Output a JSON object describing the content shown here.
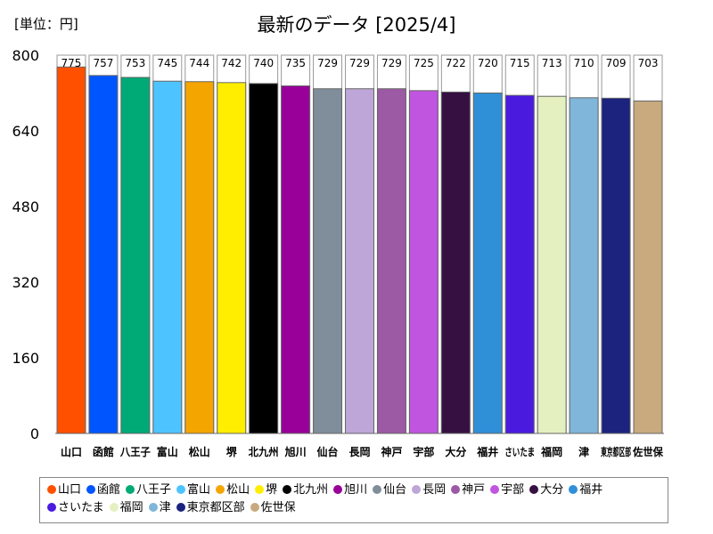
{
  "unit_label": "[単位：円]",
  "title": "最新のデータ [2025/4]",
  "chart_data": {
    "type": "bar",
    "title": "最新のデータ [2025/4]",
    "ylabel": "[単位：円]",
    "ylim": [
      0,
      800
    ],
    "yticks": [
      "800",
      "640",
      "480",
      "320",
      "160",
      "0"
    ],
    "ytick_values": [
      800,
      640,
      480,
      320,
      160,
      0
    ],
    "grid": false,
    "legend_position": "bottom",
    "categories": [
      "山口",
      "函館",
      "八王子",
      "富山",
      "松山",
      "堺",
      "北九州",
      "旭川",
      "仙台",
      "長岡",
      "神戸",
      "宇部",
      "大分",
      "福井",
      "さいたま",
      "福岡",
      "津",
      "東京都区部",
      "佐世保"
    ],
    "values": [
      775,
      757,
      753,
      745,
      744,
      742,
      740,
      735,
      729,
      729,
      729,
      725,
      722,
      720,
      715,
      713,
      710,
      709,
      703
    ],
    "value_labels": [
      "775",
      "757",
      "753",
      "745",
      "744",
      "742",
      "740",
      "735",
      "729",
      "729",
      "729",
      "725",
      "722",
      "720",
      "715",
      "713",
      "710",
      "709",
      "703"
    ],
    "xtick_labels": [
      "山口",
      "函館",
      "八王子",
      "富山",
      "松山",
      "堺",
      "北九州",
      "旭川",
      "仙台",
      "長岡",
      "神戸",
      "宇部",
      "大分",
      "福井",
      "さいたま",
      "福岡",
      "津",
      "東京都区部",
      "佐世保"
    ],
    "colors": [
      "#ff5000",
      "#0055ff",
      "#00aa77",
      "#4dc4ff",
      "#f5a500",
      "#ffee00",
      "#000000",
      "#990099",
      "#7f8e9a",
      "#bea6d8",
      "#9b5aa3",
      "#c055e0",
      "#371042",
      "#2f90d8",
      "#4a1adf",
      "#e4f0bf",
      "#7fb6da",
      "#1b237e",
      "#c8aa7e"
    ]
  }
}
